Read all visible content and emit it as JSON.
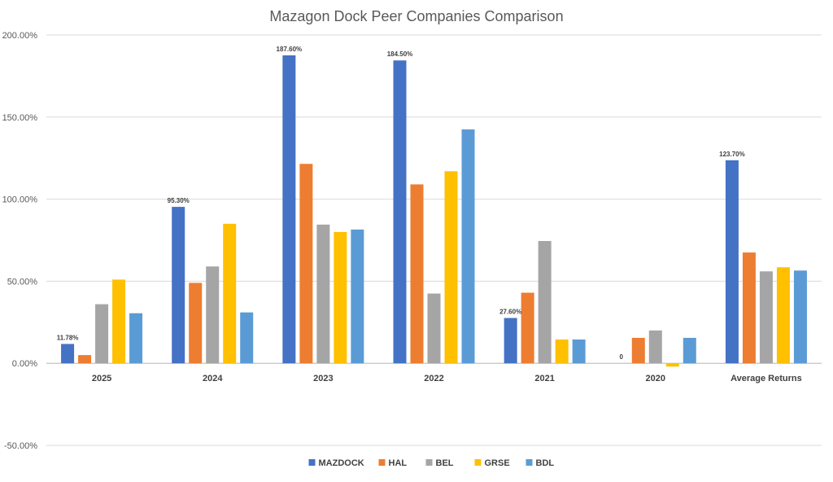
{
  "chart_data": {
    "type": "bar",
    "title": "Mazagon Dock Peer Companies Comparison",
    "xlabel": "",
    "ylabel": "",
    "ylim": [
      -0.5,
      2.0
    ],
    "yticks": [
      -0.5,
      0,
      0.5,
      1.0,
      1.5,
      2.0
    ],
    "ytick_labels": [
      "-50.00%",
      "0.00%",
      "50.00%",
      "100.00%",
      "150.00%",
      "200.00%"
    ],
    "categories": [
      "2025",
      "2024",
      "2023",
      "2022",
      "2021",
      "2020",
      "Average Returns"
    ],
    "grid": true,
    "legend_position": "bottom",
    "series": [
      {
        "name": "MAZDOCK",
        "color": "#4472C4",
        "values": [
          0.1178,
          0.953,
          1.876,
          1.845,
          0.276,
          0,
          1.237
        ],
        "data_labels": [
          "11.78%",
          "95.30%",
          "187.60%",
          "184.50%",
          "27.60%",
          "0",
          "123.70%"
        ]
      },
      {
        "name": "HAL",
        "color": "#ED7D31",
        "values": [
          0.05,
          0.49,
          1.215,
          1.09,
          0.43,
          0.155,
          0.675
        ]
      },
      {
        "name": "BEL",
        "color": "#A5A5A5",
        "values": [
          0.36,
          0.59,
          0.845,
          0.425,
          0.745,
          0.2,
          0.56
        ]
      },
      {
        "name": "GRSE",
        "color": "#FFC000",
        "values": [
          0.51,
          0.85,
          0.8,
          1.17,
          0.145,
          -0.02,
          0.585
        ]
      },
      {
        "name": "BDL",
        "color": "#5B9BD5",
        "values": [
          0.305,
          0.31,
          0.815,
          1.425,
          0.145,
          0.155,
          0.565
        ]
      }
    ]
  }
}
